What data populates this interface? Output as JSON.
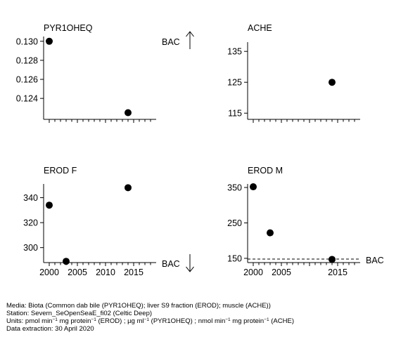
{
  "chart_data": [
    {
      "type": "scatter",
      "title": "PYR1OHEQ",
      "points": [
        {
          "x": 2000,
          "y": 0.13
        },
        {
          "x": 2014,
          "y": 0.1225
        }
      ],
      "xlim": [
        1999,
        2019
      ],
      "ylim": [
        0.1218,
        0.1305
      ],
      "yticks": [
        "0.130",
        "0.128",
        "0.126",
        "0.124"
      ],
      "ytick_values": [
        0.13,
        0.128,
        0.126,
        0.124
      ],
      "xticks": [],
      "bac_label": "BAC",
      "bac_direction": "up"
    },
    {
      "type": "scatter",
      "title": "ACHE",
      "points": [
        {
          "x": 2014,
          "y": 125
        }
      ],
      "xlim": [
        1999,
        2019
      ],
      "ylim": [
        113,
        138
      ],
      "yticks": [
        "135",
        "125",
        "115"
      ],
      "ytick_values": [
        135,
        125,
        115
      ],
      "xticks": []
    },
    {
      "type": "scatter",
      "title": "EROD F",
      "points": [
        {
          "x": 2000,
          "y": 334
        },
        {
          "x": 2003,
          "y": 289
        },
        {
          "x": 2014,
          "y": 348
        }
      ],
      "xlim": [
        1999,
        2019
      ],
      "ylim": [
        288,
        351
      ],
      "yticks": [
        "340",
        "320",
        "300"
      ],
      "ytick_values": [
        340,
        320,
        300
      ],
      "xticks": [
        "2000",
        "2005",
        "2010",
        "2015"
      ],
      "xtick_values": [
        2000,
        2005,
        2010,
        2015
      ],
      "bac_label": "BAC",
      "bac_direction": "down"
    },
    {
      "type": "scatter",
      "title": "EROD M",
      "points": [
        {
          "x": 2000,
          "y": 352
        },
        {
          "x": 2003,
          "y": 222
        },
        {
          "x": 2014,
          "y": 147
        }
      ],
      "xlim": [
        1999,
        2019
      ],
      "ylim": [
        138,
        360
      ],
      "yticks": [
        "350",
        "250",
        "150"
      ],
      "ytick_values": [
        350,
        250,
        150
      ],
      "xticks": [
        "2000",
        "2005",
        "2015"
      ],
      "xtick_values": [
        2000,
        2005,
        2015
      ],
      "bac_value": 148,
      "bac_label": "BAC"
    }
  ],
  "footer": {
    "media": "Media: Biota (Common dab bile (PYR1OHEQ); liver S9 fraction (EROD); muscle (ACHE))",
    "station": "Station: Severn_SeOpenSeaE_fi02 (Celtic Deep)",
    "units_lead": "Units:  pmol min",
    "units_sup1": "−1",
    "units_mid1": " mg protein",
    "units_sup2": "−1",
    "units_mid2": " (EROD) ;  µg ml",
    "units_sup3": "−1",
    "units_mid3": " (PYR1OHEQ) ;  nmol min",
    "units_sup4": "−1",
    "units_mid4": " mg protein",
    "units_sup5": "−1",
    "units_tail": " (ACHE)",
    "extraction": "Data extraction: 30 April 2020"
  }
}
